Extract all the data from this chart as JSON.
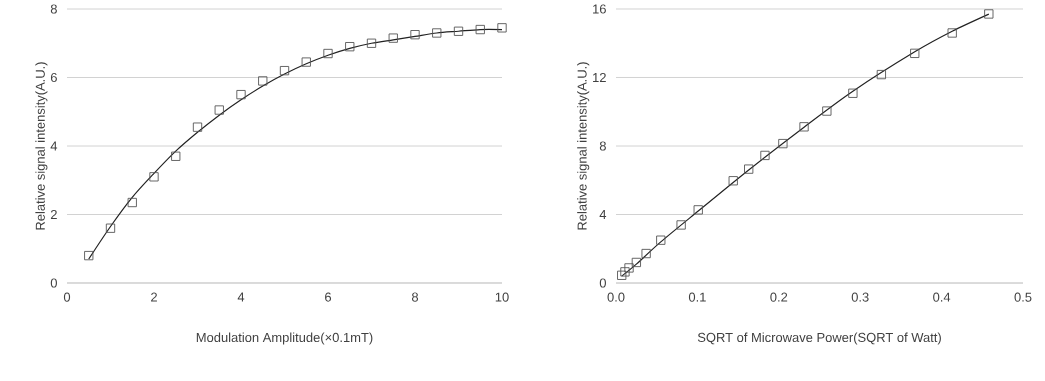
{
  "chart_data": [
    {
      "type": "scatter",
      "xlabel": "Modulation Amplitude(×0.1mT)",
      "ylabel": "Relative signal intensity(A.U.)",
      "xlim": [
        0,
        10
      ],
      "ylim": [
        0,
        8
      ],
      "xticks": [
        0,
        2,
        4,
        6,
        8,
        10
      ],
      "yticks": [
        0,
        2,
        4,
        6,
        8
      ],
      "grid": "y",
      "series": [
        {
          "marker": "square",
          "color": "#555555",
          "x": [
            0.5,
            1,
            1.5,
            2,
            2.5,
            3,
            3.5,
            4,
            4.5,
            5,
            5.5,
            6,
            6.5,
            7,
            7.5,
            8,
            8.5,
            9,
            9.5,
            10
          ],
          "values": [
            0.8,
            1.6,
            2.35,
            3.1,
            3.7,
            4.55,
            5.05,
            5.5,
            5.9,
            6.2,
            6.45,
            6.7,
            6.9,
            7.0,
            7.15,
            7.25,
            7.3,
            7.35,
            7.4,
            7.45
          ]
        },
        {
          "type": "line",
          "marker": "none",
          "color": "#222222",
          "x": [
            0.5,
            1,
            1.5,
            2,
            2.5,
            3,
            3.5,
            4,
            4.5,
            5,
            5.5,
            6,
            6.5,
            7,
            7.5,
            8,
            8.5,
            9,
            9.5,
            10
          ],
          "values": [
            0.7,
            1.65,
            2.5,
            3.2,
            3.85,
            4.4,
            4.9,
            5.35,
            5.75,
            6.1,
            6.4,
            6.65,
            6.85,
            7.0,
            7.1,
            7.2,
            7.3,
            7.35,
            7.4,
            7.4
          ]
        }
      ]
    },
    {
      "type": "scatter",
      "xlabel": "SQRT of Microwave Power(SQRT of Watt)",
      "ylabel": "Relative signal intensity(A.U.)",
      "xlim": [
        0,
        0.5
      ],
      "ylim": [
        0,
        16
      ],
      "xticks": [
        {
          "value": 0,
          "label": "0.0"
        },
        0.1,
        0.2,
        0.3,
        0.4,
        0.5
      ],
      "yticks": [
        0,
        4,
        8,
        12,
        16
      ],
      "grid": "y",
      "series": [
        {
          "marker": "square",
          "color": "#555555",
          "x": [
            0.007,
            0.011,
            0.016,
            0.025,
            0.037,
            0.055,
            0.08,
            0.101,
            0.144,
            0.163,
            0.183,
            0.205,
            0.231,
            0.259,
            0.291,
            0.326,
            0.367,
            0.413,
            0.458
          ],
          "values": [
            0.45,
            0.65,
            0.88,
            1.2,
            1.72,
            2.5,
            3.39,
            4.27,
            5.97,
            6.65,
            7.45,
            8.14,
            9.12,
            10.04,
            11.08,
            12.17,
            13.41,
            14.6,
            15.71
          ]
        },
        {
          "type": "line",
          "marker": "none",
          "color": "#222222",
          "x": [
            0.007,
            0.025,
            0.055,
            0.101,
            0.163,
            0.231,
            0.291,
            0.367,
            0.413,
            0.458
          ],
          "values": [
            0.4,
            1.1,
            2.4,
            4.2,
            6.6,
            9.1,
            11.2,
            13.5,
            14.7,
            15.7
          ]
        }
      ]
    }
  ]
}
